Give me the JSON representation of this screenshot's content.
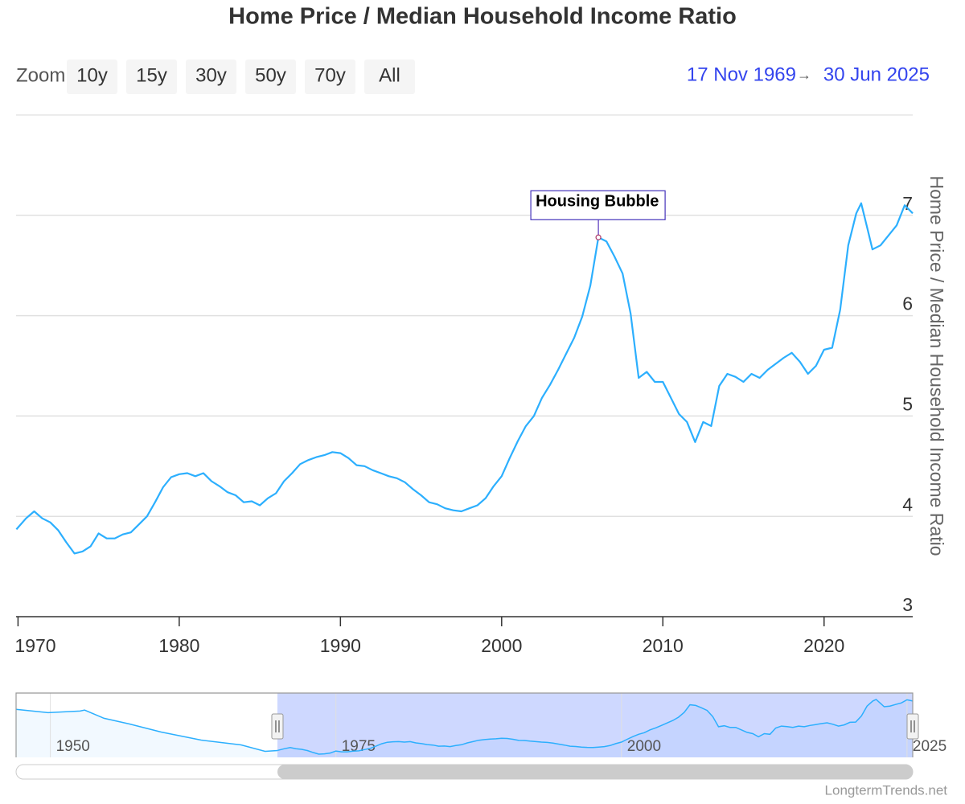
{
  "chart_data": {
    "type": "line",
    "title": "Home Price / Median Household Income Ratio",
    "zoom_label": "Zoom",
    "zoom_buttons": [
      "10y",
      "15y",
      "30y",
      "50y",
      "70y",
      "All"
    ],
    "range_from": "17 Nov 1969",
    "range_separator": "→",
    "range_to": "30 Jun 2025",
    "y_axis_label": "Home Price / Median Household Income Ratio",
    "credit": "LongtermTrends.net",
    "xlim": [
      1969.88,
      2025.5
    ],
    "xticks": [
      1970,
      1980,
      1990,
      2000,
      2010,
      2020
    ],
    "ylim": [
      3,
      8
    ],
    "yticks": [
      3,
      4,
      5,
      6,
      7
    ],
    "grid": true,
    "series": [
      {
        "name": "Home Price / Median Household Income Ratio",
        "color": "#2caffe",
        "x": [
          1969.9,
          1970.5,
          1971,
          1971.5,
          1972,
          1972.5,
          1973,
          1973.5,
          1974,
          1974.5,
          1975,
          1975.5,
          1976,
          1976.5,
          1977,
          1977.5,
          1978,
          1978.5,
          1979,
          1979.5,
          1980,
          1980.5,
          1981,
          1981.5,
          1982,
          1982.5,
          1983,
          1983.5,
          1984,
          1984.5,
          1985,
          1985.5,
          1986,
          1986.5,
          1987,
          1987.5,
          1988,
          1988.5,
          1989,
          1989.5,
          1990,
          1990.5,
          1991,
          1991.5,
          1992,
          1992.5,
          1993,
          1993.5,
          1994,
          1994.5,
          1995,
          1995.5,
          1996,
          1996.5,
          1997,
          1997.5,
          1998,
          1998.5,
          1999,
          1999.5,
          2000,
          2000.5,
          2001,
          2001.5,
          2002,
          2002.5,
          2003,
          2003.5,
          2004,
          2004.5,
          2005,
          2005.5,
          2006,
          2006.5,
          2007,
          2007.5,
          2008,
          2008.5,
          2009,
          2009.5,
          2010,
          2010.5,
          2011,
          2011.5,
          2012,
          2012.5,
          2013,
          2013.5,
          2014,
          2014.5,
          2015,
          2015.5,
          2016,
          2016.5,
          2017,
          2017.5,
          2018,
          2018.5,
          2019,
          2019.5,
          2020,
          2020.5,
          2021,
          2021.5,
          2022,
          2022.3,
          2022.7,
          2023,
          2023.5,
          2024,
          2024.5,
          2025,
          2025.5
        ],
        "values": [
          3.87,
          3.98,
          4.05,
          3.98,
          3.94,
          3.86,
          3.74,
          3.63,
          3.65,
          3.7,
          3.83,
          3.78,
          3.78,
          3.82,
          3.84,
          3.92,
          4.0,
          4.14,
          4.29,
          4.39,
          4.42,
          4.43,
          4.4,
          4.43,
          4.35,
          4.3,
          4.24,
          4.21,
          4.14,
          4.15,
          4.11,
          4.18,
          4.23,
          4.35,
          4.43,
          4.52,
          4.56,
          4.59,
          4.61,
          4.64,
          4.63,
          4.58,
          4.51,
          4.5,
          4.46,
          4.43,
          4.4,
          4.38,
          4.34,
          4.27,
          4.21,
          4.14,
          4.12,
          4.08,
          4.06,
          4.05,
          4.08,
          4.11,
          4.18,
          4.3,
          4.4,
          4.58,
          4.75,
          4.9,
          5.0,
          5.18,
          5.31,
          5.46,
          5.62,
          5.78,
          5.99,
          6.3,
          6.78,
          6.74,
          6.59,
          6.42,
          6.02,
          5.38,
          5.44,
          5.34,
          5.34,
          5.18,
          5.02,
          4.94,
          4.74,
          4.94,
          4.9,
          5.3,
          5.42,
          5.39,
          5.34,
          5.42,
          5.38,
          5.46,
          5.52,
          5.58,
          5.63,
          5.54,
          5.42,
          5.5,
          5.66,
          5.68,
          6.06,
          6.7,
          7.02,
          7.12,
          6.86,
          6.66,
          6.7,
          6.8,
          6.9,
          7.1,
          7.02
        ]
      }
    ],
    "annotation": {
      "text": "Housing Bubble",
      "x": 2006,
      "y": 6.78
    },
    "navigator": {
      "xlim": [
        1947,
        2025.5
      ],
      "xticks": [
        1950,
        1975,
        2000,
        2025
      ],
      "x": [
        1947,
        1949.8,
        1952.6,
        1953,
        1954.7,
        1956.9,
        1959.7,
        1963.2,
        1966.7,
        1968.8,
        1969.9
      ],
      "values": [
        6.49,
        6.28,
        6.38,
        6.44,
        5.92,
        5.56,
        5.04,
        4.53,
        4.22,
        3.81,
        3.86
      ]
    }
  }
}
